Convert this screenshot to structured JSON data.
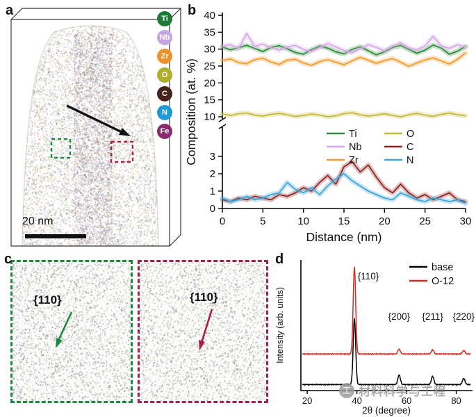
{
  "figure": {
    "panel_labels": {
      "a": "a",
      "b": "b",
      "c": "c",
      "d": "d"
    }
  },
  "panel_a": {
    "scale_bar": "20 nm",
    "elements": [
      {
        "symbol": "Ti",
        "color": "#1f7a38"
      },
      {
        "symbol": "Nb",
        "color": "#c6a3e3"
      },
      {
        "symbol": "Zr",
        "color": "#f0922c"
      },
      {
        "symbol": "O",
        "color": "#b2ae2e"
      },
      {
        "symbol": "C",
        "color": "#46231a"
      },
      {
        "symbol": "N",
        "color": "#1f9ad6"
      },
      {
        "symbol": "Fe",
        "color": "#8c2a70"
      }
    ]
  },
  "panel_c": {
    "left_plane_label": "{110}",
    "right_plane_label": "{110}",
    "left_color": "#1a8a3c",
    "right_color": "#a81f4a"
  },
  "watermark": {
    "text": "材料科学与工程",
    "logo_glyph": "工"
  },
  "chart_data": [
    {
      "type": "line",
      "title": "",
      "xlabel": "Distance (nm)",
      "ylabel": "Composition (at. %)",
      "xlim": [
        0,
        30
      ],
      "xticks": [
        0,
        5,
        10,
        15,
        20,
        25,
        30
      ],
      "broken_y_axis": {
        "lower_range": [
          0,
          4
        ],
        "lower_ticks": [
          0,
          1,
          2,
          3
        ],
        "upper_range": [
          10,
          40
        ],
        "upper_ticks": [
          10,
          15,
          20,
          25,
          30,
          35,
          40
        ]
      },
      "x": [
        0,
        1,
        2,
        3,
        4,
        5,
        6,
        7,
        8,
        9,
        10,
        11,
        12,
        13,
        14,
        15,
        16,
        17,
        18,
        19,
        20,
        21,
        22,
        23,
        24,
        25,
        26,
        27,
        28,
        29,
        30
      ],
      "series": [
        {
          "name": "Ti",
          "color": "#2e8b3a",
          "segment": "upper",
          "values": [
            30.6,
            29.8,
            30.4,
            31.1,
            30.2,
            29.3,
            30.5,
            31.0,
            30.1,
            29.0,
            28.5,
            29.8,
            30.9,
            30.3,
            29.2,
            28.6,
            29.9,
            30.7,
            29.5,
            28.3,
            29.2,
            30.5,
            31.1,
            29.9,
            28.8,
            29.7,
            31.2,
            30.3,
            28.5,
            29.4,
            30.8
          ]
        },
        {
          "name": "Nb",
          "color": "#d7a8e8",
          "segment": "upper",
          "values": [
            30.9,
            31.3,
            30.1,
            34.6,
            30.8,
            31.5,
            30.4,
            29.7,
            30.6,
            31.1,
            29.9,
            29.3,
            30.4,
            31.7,
            30.6,
            29.6,
            28.9,
            30.1,
            31.3,
            30.5,
            29.5,
            30.8,
            31.9,
            30.4,
            29.8,
            30.9,
            33.8,
            31.0,
            30.2,
            31.3,
            30.5
          ]
        },
        {
          "name": "Zr",
          "color": "#f59a2c",
          "segment": "upper",
          "values": [
            26.6,
            27.1,
            26.0,
            25.7,
            26.9,
            27.3,
            26.2,
            25.5,
            26.7,
            27.0,
            25.9,
            25.2,
            26.3,
            26.9,
            26.1,
            25.4,
            26.5,
            27.6,
            26.7,
            25.8,
            26.6,
            27.2,
            26.1,
            24.9,
            25.9,
            26.8,
            27.4,
            26.5,
            25.6,
            27.0,
            28.9
          ]
        },
        {
          "name": "O",
          "color": "#c5b93a",
          "segment": "upper",
          "values": [
            10.8,
            10.4,
            10.9,
            11.1,
            10.5,
            10.2,
            10.7,
            11.0,
            10.6,
            10.1,
            10.4,
            10.8,
            10.5,
            10.0,
            10.3,
            10.9,
            11.2,
            10.6,
            10.2,
            10.5,
            10.9,
            10.4,
            10.0,
            10.6,
            11.0,
            10.5,
            10.1,
            10.7,
            11.1,
            10.6,
            10.3
          ]
        },
        {
          "name": "C",
          "color": "#8e2420",
          "segment": "lower",
          "values": [
            0.5,
            0.4,
            0.6,
            0.5,
            0.7,
            0.6,
            0.5,
            0.8,
            0.7,
            0.9,
            1.2,
            1.0,
            1.5,
            1.9,
            1.4,
            2.4,
            2.7,
            2.1,
            2.5,
            1.8,
            1.2,
            0.9,
            1.4,
            0.9,
            0.6,
            0.8,
            0.5,
            0.7,
            0.9,
            0.5,
            0.4
          ]
        },
        {
          "name": "N",
          "color": "#3fa6dc",
          "segment": "lower",
          "values": [
            0.6,
            0.4,
            0.5,
            0.7,
            0.5,
            0.6,
            0.8,
            0.9,
            1.5,
            1.1,
            0.9,
            1.2,
            0.8,
            1.3,
            1.7,
            2.0,
            1.6,
            1.3,
            1.0,
            0.8,
            0.6,
            0.5,
            0.9,
            0.7,
            0.5,
            0.4,
            0.6,
            0.5,
            0.4,
            0.5,
            0.3
          ]
        }
      ],
      "legend": {
        "position": "center",
        "columns": [
          [
            "Ti",
            "Nb",
            "Zr"
          ],
          [
            "O",
            "C",
            "N"
          ]
        ]
      }
    },
    {
      "type": "line",
      "title": "",
      "xlabel": "2θ (degree)",
      "ylabel": "Intensity (arb. units)",
      "xlim": [
        18,
        86
      ],
      "xticks": [
        20,
        40,
        60,
        80
      ],
      "peak_labels": [
        {
          "text": "{110}",
          "two_theta": 39
        },
        {
          "text": "{200}",
          "two_theta": 57
        },
        {
          "text": "{211}",
          "two_theta": 70.5
        },
        {
          "text": "{220}",
          "two_theta": 83
        }
      ],
      "series": [
        {
          "name": "base",
          "color": "#000000",
          "baseline_offset": 0,
          "peaks": [
            {
              "two_theta": 39,
              "height": 95
            },
            {
              "two_theta": 57,
              "height": 14
            },
            {
              "two_theta": 70.5,
              "height": 12
            },
            {
              "two_theta": 83,
              "height": 9
            }
          ]
        },
        {
          "name": "O-12",
          "color": "#d62a20",
          "baseline_offset": 44,
          "peaks": [
            {
              "two_theta": 39,
              "height": 125
            },
            {
              "two_theta": 57,
              "height": 7
            },
            {
              "two_theta": 70.5,
              "height": 6
            },
            {
              "two_theta": 83,
              "height": 5
            }
          ]
        }
      ],
      "legend": [
        "base",
        "O-12"
      ]
    }
  ]
}
